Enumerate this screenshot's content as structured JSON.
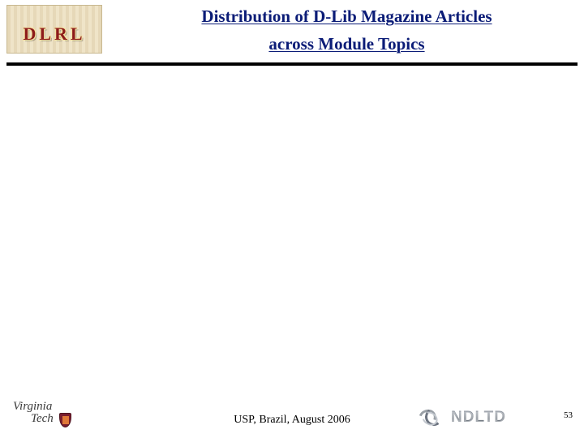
{
  "header": {
    "logo_text": "DLRL",
    "title_line1": "Distribution of D-Lib Magazine Articles",
    "title_line2": "across Module Topics",
    "title_color": "#0b1c77",
    "rule_color": "#000000"
  },
  "footer": {
    "left_logo": {
      "word1": "Virginia",
      "word2": "Tech",
      "shield_color": "#7a1d2e"
    },
    "center_text": "USP, Brazil, August 2006",
    "right_logo_text": "NDLTD",
    "page_number": "53"
  },
  "colors": {
    "background": "#ffffff",
    "text": "#000000",
    "dlrl_red": "#8d1b1b",
    "dlrl_bg": "#f0e5cf"
  }
}
